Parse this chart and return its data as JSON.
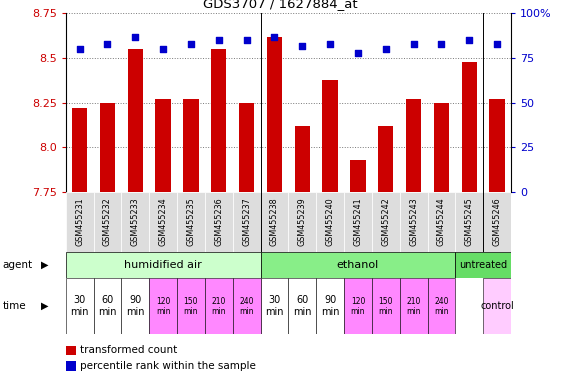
{
  "title": "GDS3707 / 1627884_at",
  "samples": [
    "GSM455231",
    "GSM455232",
    "GSM455233",
    "GSM455234",
    "GSM455235",
    "GSM455236",
    "GSM455237",
    "GSM455238",
    "GSM455239",
    "GSM455240",
    "GSM455241",
    "GSM455242",
    "GSM455243",
    "GSM455244",
    "GSM455245",
    "GSM455246"
  ],
  "bar_values": [
    8.22,
    8.25,
    8.55,
    8.27,
    8.27,
    8.55,
    8.25,
    8.62,
    8.12,
    8.38,
    7.93,
    8.12,
    8.27,
    8.25,
    8.48,
    8.27
  ],
  "dot_values": [
    80,
    83,
    87,
    80,
    83,
    85,
    85,
    87,
    82,
    83,
    78,
    80,
    83,
    83,
    85,
    83
  ],
  "bar_color": "#cc0000",
  "dot_color": "#0000cc",
  "ylim_left": [
    7.75,
    8.75
  ],
  "ylim_right": [
    0,
    100
  ],
  "yticks_left": [
    7.75,
    8.0,
    8.25,
    8.5,
    8.75
  ],
  "yticks_right": [
    0,
    25,
    50,
    75,
    100
  ],
  "time_bg_white": "#ffffff",
  "time_bg_pink": "#ff88ff",
  "agent_air_color": "#ccffcc",
  "agent_eth_color": "#88ee88",
  "agent_untreated_color": "#66dd66",
  "control_bg": "#ffccff",
  "sample_bg": "#dddddd",
  "legend_bar_color": "#cc0000",
  "legend_dot_color": "#0000cc",
  "bar_width": 0.55,
  "grid_color": "#777777"
}
